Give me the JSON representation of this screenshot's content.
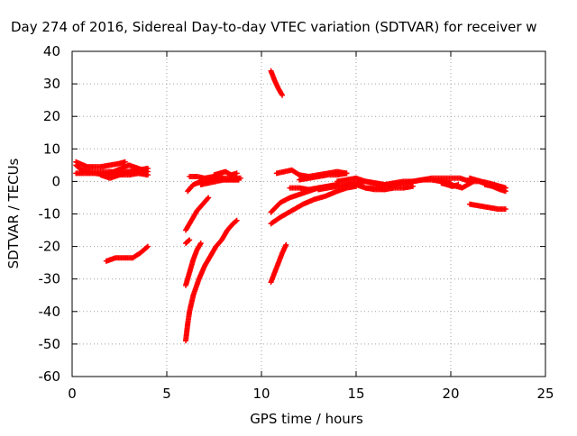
{
  "chart_data": {
    "type": "scatter",
    "title": "Day 274 of 2016, Sidereal Day-to-day VTEC variation (SDTVAR) for receiver w",
    "xlabel": "GPS time / hours",
    "ylabel": "SDTVAR / TECUs",
    "xlim": [
      0,
      25
    ],
    "ylim": [
      -60,
      40
    ],
    "xticks": [
      "0",
      "5",
      "10",
      "15",
      "20",
      "25"
    ],
    "yticks": [
      "40",
      "30",
      "20",
      "10",
      "0",
      "-10",
      "-20",
      "-30",
      "-40",
      "-50",
      "-60"
    ],
    "grid": true,
    "legend": false,
    "marker": "+",
    "color": "#ff0000",
    "series": [
      {
        "x": [
          0.2,
          0.5,
          1.0,
          1.5,
          2.0,
          2.5,
          3.0,
          3.5,
          4.0
        ],
        "y": [
          5,
          3.5,
          3,
          3,
          3,
          3,
          3,
          3.5,
          4
        ]
      },
      {
        "x": [
          0.2,
          0.6,
          1.2,
          1.8,
          2.2,
          2.6,
          3.0,
          3.5,
          4.0
        ],
        "y": [
          2.5,
          2.5,
          2.5,
          2,
          3,
          4,
          5,
          4,
          3
        ]
      },
      {
        "x": [
          1.5,
          2.0,
          2.5,
          3.0
        ],
        "y": [
          2,
          1,
          2,
          3
        ]
      },
      {
        "x": [
          2.0,
          2.5,
          3.0,
          3.5,
          4.0
        ],
        "y": [
          3,
          2,
          2,
          2.5,
          2
        ]
      },
      {
        "x": [
          0.2,
          0.8,
          1.5,
          2.0,
          2.5,
          2.8
        ],
        "y": [
          6,
          4.5,
          4.5,
          5,
          5.5,
          6
        ]
      },
      {
        "x": [
          1.8,
          2.3,
          2.8,
          3.2,
          3.6,
          4.0
        ],
        "y": [
          -24.5,
          -23.5,
          -23.5,
          -23.5,
          -22,
          -20
        ]
      },
      {
        "x": [
          6.0,
          6.1,
          6.2,
          6.4,
          6.7,
          7.0,
          7.3,
          7.6,
          7.9,
          8.2,
          8.5,
          8.7
        ],
        "y": [
          -49,
          -44,
          -40,
          -35,
          -30,
          -26,
          -23,
          -20,
          -18,
          -15,
          -13,
          -12
        ]
      },
      {
        "x": [
          6.0,
          6.2,
          6.4,
          6.6,
          6.8
        ],
        "y": [
          -32,
          -28,
          -24,
          -21,
          -19
        ]
      },
      {
        "x": [
          6.0,
          6.3,
          6.6,
          6.9,
          7.2
        ],
        "y": [
          -15,
          -12,
          -9,
          -7,
          -5
        ]
      },
      {
        "x": [
          6.0,
          6.2
        ],
        "y": [
          -19,
          -18
        ]
      },
      {
        "x": [
          6.1,
          6.4,
          6.8,
          7.2,
          7.6,
          8.0,
          8.4,
          8.8
        ],
        "y": [
          -3,
          -1,
          0,
          0,
          0.5,
          0.5,
          0.5,
          0.5
        ]
      },
      {
        "x": [
          6.2,
          6.6,
          7.0,
          7.5,
          8.0,
          8.5,
          8.9
        ],
        "y": [
          1.5,
          1.5,
          1,
          1.5,
          1,
          1,
          1
        ]
      },
      {
        "x": [
          7.5,
          7.8,
          8.1,
          8.4,
          8.7
        ],
        "y": [
          2,
          2.5,
          3,
          2,
          2.5
        ]
      },
      {
        "x": [
          6.8,
          7.2,
          7.6,
          8.0,
          8.4,
          8.8
        ],
        "y": [
          -1,
          -0.5,
          0,
          0.5,
          0.5,
          0.5
        ]
      },
      {
        "x": [
          10.5,
          10.7,
          10.9,
          11.1
        ],
        "y": [
          34,
          31,
          28.5,
          26.5
        ]
      },
      {
        "x": [
          10.5,
          10.7,
          10.9,
          11.1,
          11.3
        ],
        "y": [
          -31,
          -28,
          -25,
          -22,
          -19.5
        ]
      },
      {
        "x": [
          10.5,
          11.0,
          11.6,
          12.2,
          12.8,
          13.4,
          14.0,
          14.5,
          15.0
        ],
        "y": [
          -13,
          -11,
          -9,
          -7,
          -5.5,
          -4.5,
          -3,
          -2,
          -1.5
        ]
      },
      {
        "x": [
          10.5,
          11.0,
          11.5,
          12.0,
          12.5,
          13.0,
          13.5,
          14.0
        ],
        "y": [
          -9.5,
          -6.5,
          -5,
          -4,
          -3,
          -2,
          -1.5,
          -1
        ]
      },
      {
        "x": [
          10.8,
          11.2,
          11.6,
          12.0,
          12.5,
          13.0,
          13.5,
          14.0,
          14.5
        ],
        "y": [
          2.5,
          3,
          3.5,
          2,
          1.5,
          2,
          2.5,
          3,
          2.5
        ]
      },
      {
        "x": [
          11.5,
          12.0,
          12.5,
          13.0,
          13.5,
          14.0
        ],
        "y": [
          -2,
          -2,
          -2.5,
          -2,
          -1.5,
          -1
        ]
      },
      {
        "x": [
          12.0,
          12.5,
          13.0,
          13.5,
          14.0,
          14.5
        ],
        "y": [
          0.5,
          1,
          1.5,
          2,
          2,
          2.5
        ]
      },
      {
        "x": [
          13.0,
          13.5,
          14.0,
          14.5,
          15.0,
          15.5,
          16.0,
          16.5
        ],
        "y": [
          -2.5,
          -2,
          -1.5,
          -1,
          -1,
          -2,
          -2,
          -2.5
        ]
      },
      {
        "x": [
          14.0,
          14.5,
          15.0,
          15.5,
          16.0,
          16.5,
          17.0,
          17.5,
          18.0,
          18.5,
          19.0,
          19.5,
          20.0,
          20.5,
          21.0,
          21.5,
          22.0,
          22.5,
          22.8
        ],
        "y": [
          0,
          0.5,
          1,
          0,
          -0.5,
          -1,
          -1,
          -0.5,
          0,
          0.5,
          1,
          1,
          1,
          1,
          0,
          0,
          -1,
          -1.5,
          -2
        ]
      },
      {
        "x": [
          14.5,
          15.0,
          15.5,
          16.0,
          16.5,
          17.0,
          17.5,
          18.0,
          18.5,
          19.0,
          19.5,
          20.0
        ],
        "y": [
          -1,
          -0.5,
          0,
          -0.5,
          -1,
          -0.5,
          0,
          0,
          0.5,
          0.5,
          0,
          -0.5
        ]
      },
      {
        "x": [
          15.5,
          16.0,
          16.5,
          17.0,
          17.5,
          18.0
        ],
        "y": [
          -2,
          -2.5,
          -2.5,
          -2,
          -2,
          -1.5
        ]
      },
      {
        "x": [
          20.0,
          20.3,
          20.6,
          20.9,
          21.2
        ],
        "y": [
          -1,
          -1.5,
          -2,
          -1,
          0
        ]
      },
      {
        "x": [
          21.0,
          21.3,
          21.6,
          22.0,
          22.3,
          22.6,
          22.9
        ],
        "y": [
          1,
          0.5,
          0,
          -0.5,
          -1,
          -1.5,
          -2
        ]
      },
      {
        "x": [
          21.0,
          21.5,
          22.0,
          22.5,
          22.9
        ],
        "y": [
          -7,
          -7.5,
          -8,
          -8.5,
          -8.5
        ]
      },
      {
        "x": [
          21.8,
          22.2,
          22.6,
          22.9
        ],
        "y": [
          -1,
          -1.5,
          -2.5,
          -3
        ]
      },
      {
        "x": [
          19.5,
          19.8,
          20.1,
          20.4
        ],
        "y": [
          -0.5,
          -1,
          -1.5,
          -1
        ]
      }
    ]
  }
}
